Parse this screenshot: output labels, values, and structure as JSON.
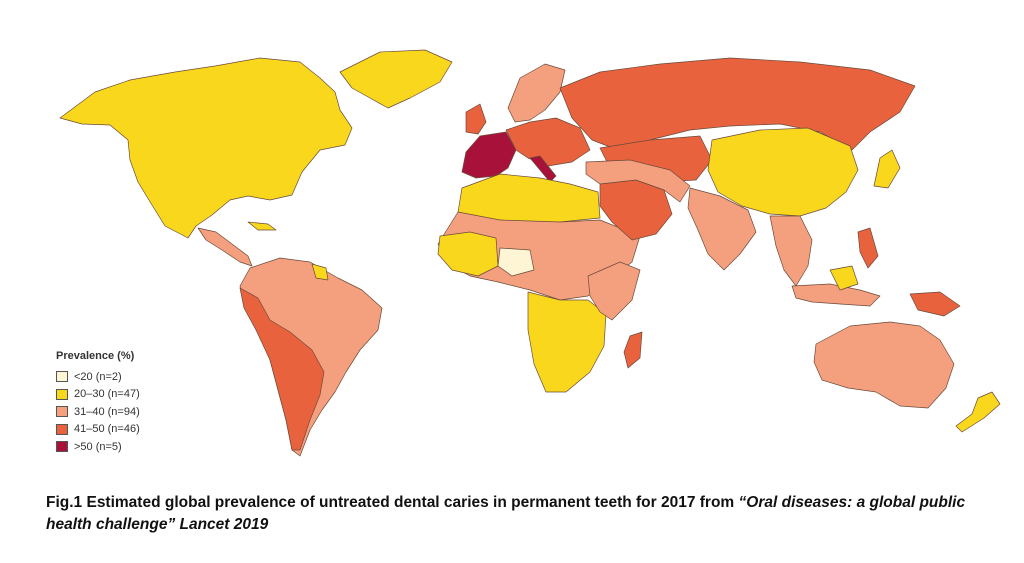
{
  "colors": {
    "lt20": "#fdf5d3",
    "p20_30": "#f9d71c",
    "p31_40": "#f4a07e",
    "p41_50": "#e8623e",
    "gt50": "#a8123a",
    "border": "#6b4a3a",
    "water": "#ffffff"
  },
  "legend": {
    "title": "Prevalence (%)",
    "items": [
      {
        "label": "<20 (n=2)",
        "color": "#fdf5d3"
      },
      {
        "label": "20–30 (n=47)",
        "color": "#f9d71c"
      },
      {
        "label": "31–40 (n=94)",
        "color": "#f4a07e"
      },
      {
        "label": "41–50 (n=46)",
        "color": "#e8623e"
      },
      {
        "label": ">50 (n=5)",
        "color": "#a8123a"
      }
    ]
  },
  "caption": {
    "plain": "Fig.1 Estimated global prevalence of untreated dental caries in permanent teeth for 2017 from ",
    "italic": "“Oral diseases: a global public health challenge” Lancet 2019"
  }
}
